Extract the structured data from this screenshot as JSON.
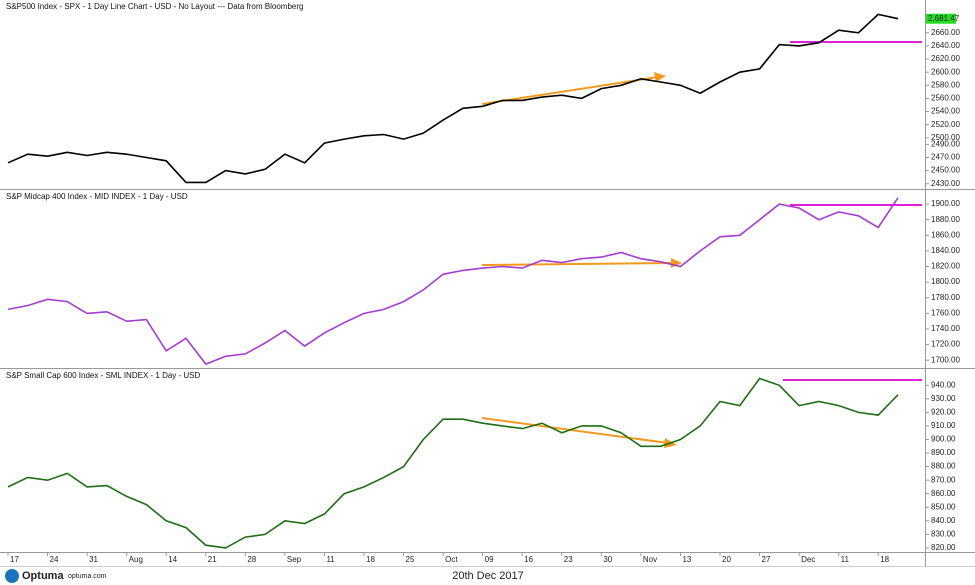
{
  "chart_data": [
    {
      "type": "line",
      "title": "S&P500 Index - SPX - 1 Day Line Chart - USD - No Layout --- Data from Bloomberg",
      "color": "#000000",
      "values": [
        2462,
        2475,
        2472,
        2478,
        2473,
        2478,
        2475,
        2470,
        2465,
        2432,
        2432,
        2450,
        2445,
        2452,
        2475,
        2462,
        2492,
        2498,
        2503,
        2505,
        2498,
        2507,
        2527,
        2545,
        2548,
        2557,
        2557,
        2562,
        2565,
        2560,
        2575,
        2580,
        2590,
        2585,
        2580,
        2568,
        2585,
        2600,
        2605,
        2642,
        2640,
        2645,
        2664,
        2660,
        2688,
        2681.47
      ],
      "value_labels": [
        null,
        null,
        null,
        null,
        null,
        null,
        null,
        null,
        null,
        null,
        null,
        null,
        null,
        null,
        null,
        null,
        null,
        null,
        null,
        null,
        null,
        null,
        null,
        null,
        null,
        null,
        null,
        null,
        null,
        null,
        null,
        null,
        null,
        null,
        null,
        null,
        null,
        null,
        null,
        null,
        null,
        null,
        null,
        null,
        null,
        "2,681.47"
      ],
      "ylim": [
        2422,
        2710
      ],
      "yticks": [
        {
          "value": 2430,
          "label": "2430.00"
        },
        {
          "value": 2450,
          "label": "2450.00"
        },
        {
          "value": 2470,
          "label": "2470.00"
        },
        {
          "value": 2490,
          "label": "2490.00"
        },
        {
          "value": 2500,
          "label": "2500.00"
        },
        {
          "value": 2520,
          "label": "2520.00"
        },
        {
          "value": 2540,
          "label": "2540.00"
        },
        {
          "value": 2560,
          "label": "2560.00"
        },
        {
          "value": 2580,
          "label": "2580.00"
        },
        {
          "value": 2600,
          "label": "2600.00"
        },
        {
          "value": 2620,
          "label": "2620.00"
        },
        {
          "value": 2640,
          "label": "2640.00"
        },
        {
          "value": 2660,
          "label": "2660.00"
        }
      ]
    },
    {
      "type": "line",
      "title": "S&P Midcap 400 Index - MID INDEX - 1 Day - USD",
      "color": "#a43cd0",
      "values": [
        1765,
        1770,
        1778,
        1775,
        1760,
        1762,
        1750,
        1752,
        1712,
        1728,
        1695,
        1705,
        1708,
        1722,
        1738,
        1718,
        1735,
        1748,
        1760,
        1765,
        1775,
        1790,
        1810,
        1815,
        1818,
        1820,
        1818,
        1828,
        1825,
        1830,
        1832,
        1838,
        1830,
        1826,
        1820,
        1840,
        1858,
        1860,
        1880,
        1900,
        1895,
        1880,
        1890,
        1885,
        1870,
        1908
      ],
      "ylim": [
        1690,
        1918
      ],
      "yticks": [
        {
          "value": 1700,
          "label": "1700.00"
        },
        {
          "value": 1720,
          "label": "1720.00"
        },
        {
          "value": 1740,
          "label": "1740.00"
        },
        {
          "value": 1760,
          "label": "1760.00"
        },
        {
          "value": 1780,
          "label": "1780.00"
        },
        {
          "value": 1800,
          "label": "1800.00"
        },
        {
          "value": 1820,
          "label": "1820.00"
        },
        {
          "value": 1840,
          "label": "1840.00"
        },
        {
          "value": 1860,
          "label": "1860.00"
        },
        {
          "value": 1880,
          "label": "1880.00"
        },
        {
          "value": 1900,
          "label": "1900.00"
        }
      ]
    },
    {
      "type": "line",
      "title": "S&P Small Cap 600 Index - SML INDEX - 1 Day - USD",
      "color": "#1e6e14",
      "values": [
        865,
        872,
        870,
        875,
        865,
        866,
        858,
        852,
        840,
        835,
        822,
        820,
        828,
        830,
        840,
        838,
        845,
        860,
        865,
        872,
        880,
        900,
        915,
        915,
        912,
        910,
        908,
        912,
        905,
        910,
        910,
        905,
        895,
        895,
        900,
        910,
        928,
        925,
        945,
        940,
        925,
        928,
        925,
        920,
        918,
        933
      ],
      "ylim": [
        817,
        952
      ],
      "yticks": [
        {
          "value": 820,
          "label": "820.00"
        },
        {
          "value": 830,
          "label": "830.00"
        },
        {
          "value": 840,
          "label": "840.00"
        },
        {
          "value": 850,
          "label": "850.00"
        },
        {
          "value": 860,
          "label": "860.00"
        },
        {
          "value": 870,
          "label": "870.00"
        },
        {
          "value": 880,
          "label": "880.00"
        },
        {
          "value": 890,
          "label": "890.00"
        },
        {
          "value": 900,
          "label": "900.00"
        },
        {
          "value": 910,
          "label": "910.00"
        },
        {
          "value": 920,
          "label": "920.00"
        },
        {
          "value": 930,
          "label": "930.00"
        },
        {
          "value": 940,
          "label": "940.00"
        }
      ],
      "categories": [
        "17",
        null,
        "24",
        null,
        "31",
        null,
        "Aug",
        null,
        "14",
        null,
        "21",
        null,
        "28",
        null,
        "Sep",
        null,
        "11",
        null,
        "18",
        null,
        "25",
        null,
        "Oct",
        null,
        "09",
        null,
        "16",
        null,
        "23",
        null,
        "30",
        null,
        "Nov",
        null,
        "13",
        null,
        "20",
        null,
        "27",
        null,
        "Dec",
        null,
        "11",
        null,
        "18",
        null
      ]
    }
  ],
  "footer": {
    "brand": "Optuma",
    "site": "optuma.com",
    "date": "20th Dec 2017"
  }
}
